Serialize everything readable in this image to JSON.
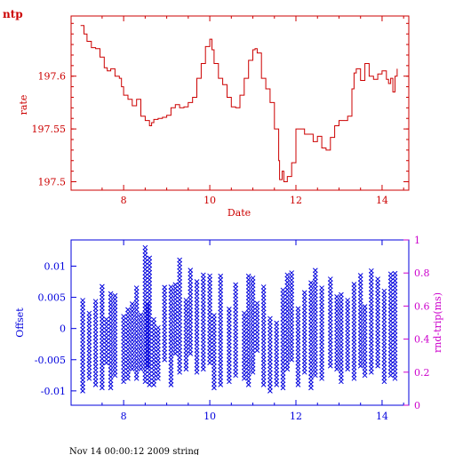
{
  "header": {
    "title": "ntp"
  },
  "footer": {
    "timestamp": "Nov 14 00:00:12 2009 string"
  },
  "colors": {
    "rate": "#cc0000",
    "offset": "#0000dd",
    "rtt": "#cc00cc"
  },
  "chart_data": [
    {
      "type": "line",
      "xlabel": "Date",
      "ylabel": "rate",
      "xlim": [
        6.78,
        14.62
      ],
      "ylim": [
        197.492,
        197.657
      ],
      "x_ticks": [
        8,
        10,
        12,
        14
      ],
      "y_ticks": [
        197.5,
        197.55,
        197.6
      ],
      "y_tick_labels": [
        "197.5",
        "197.55",
        "197.6"
      ],
      "grid": false,
      "series": [
        {
          "x": [
            7.0,
            7.08,
            7.15,
            7.25,
            7.35,
            7.45,
            7.55,
            7.62,
            7.7,
            7.8,
            7.9,
            7.95,
            8.0,
            8.1,
            8.2,
            8.3,
            8.4,
            8.5,
            8.6,
            8.65,
            8.7,
            8.8,
            8.9,
            9.0,
            9.1,
            9.2,
            9.3,
            9.4,
            9.5,
            9.6,
            9.7,
            9.8,
            9.9,
            10.0,
            10.05,
            10.1,
            10.2,
            10.3,
            10.4,
            10.5,
            10.6,
            10.7,
            10.8,
            10.9,
            11.0,
            11.05,
            11.1,
            11.2,
            11.3,
            11.4,
            11.5,
            11.6,
            11.62,
            11.68,
            11.72,
            11.8,
            11.9,
            12.0,
            12.1,
            12.2,
            12.3,
            12.4,
            12.5,
            12.6,
            12.7,
            12.8,
            12.9,
            13.0,
            13.1,
            13.2,
            13.3,
            13.35,
            13.4,
            13.5,
            13.6,
            13.7,
            13.8,
            13.9,
            14.0,
            14.1,
            14.15,
            14.2,
            14.25,
            14.3,
            14.35
          ],
          "y": [
            197.648,
            197.64,
            197.633,
            197.627,
            197.626,
            197.618,
            197.608,
            197.605,
            197.607,
            197.6,
            197.598,
            197.59,
            197.582,
            197.578,
            197.572,
            197.578,
            197.562,
            197.558,
            197.553,
            197.556,
            197.559,
            197.56,
            197.561,
            197.563,
            197.57,
            197.573,
            197.57,
            197.571,
            197.575,
            197.58,
            197.598,
            197.612,
            197.628,
            197.635,
            197.625,
            197.612,
            197.598,
            197.592,
            197.58,
            197.571,
            197.57,
            197.582,
            197.598,
            197.615,
            197.625,
            197.626,
            197.622,
            197.598,
            197.588,
            197.575,
            197.55,
            197.52,
            197.502,
            197.51,
            197.5,
            197.505,
            197.518,
            197.55,
            197.55,
            197.545,
            197.545,
            197.538,
            197.543,
            197.532,
            197.53,
            197.542,
            197.553,
            197.558,
            197.558,
            197.562,
            197.588,
            197.603,
            197.607,
            197.596,
            197.612,
            197.6,
            197.597,
            197.602,
            197.605,
            197.597,
            197.593,
            197.598,
            197.585,
            197.6,
            197.607
          ]
        }
      ]
    },
    {
      "type": "scatter",
      "xlabel": "",
      "ylabel": "Offset",
      "y2label": "rnd-trip(ms)",
      "xlim": [
        6.78,
        14.62
      ],
      "ylim": [
        -0.0123,
        0.0142
      ],
      "y2lim": [
        0,
        1
      ],
      "x_ticks": [
        8,
        10,
        12,
        14
      ],
      "y_ticks": [
        -0.01,
        -0.005,
        0,
        0.005,
        0.01
      ],
      "y_tick_labels": [
        "-0.01",
        "-0.005",
        "0",
        "0.005",
        "0.01"
      ],
      "y2_ticks": [
        0,
        0.2,
        0.4,
        0.6,
        0.8,
        1
      ],
      "y2_tick_labels": [
        "0",
        "0.2",
        "0.4",
        "0.6",
        "0.8",
        "1"
      ],
      "marker": "x",
      "grid": false,
      "series": [
        {
          "x": [
            7.05,
            7.2,
            7.35,
            7.5,
            7.6,
            7.7,
            7.8,
            8.0,
            8.1,
            8.2,
            8.3,
            8.4,
            8.5,
            8.55,
            8.6,
            8.7,
            8.8,
            8.95,
            9.1,
            9.2,
            9.3,
            9.45,
            9.55,
            9.7,
            9.85,
            10.0,
            10.1,
            10.25,
            10.45,
            10.6,
            10.8,
            10.9,
            11.0,
            11.1,
            11.25,
            11.4,
            11.55,
            11.7,
            11.8,
            11.9,
            12.05,
            12.2,
            12.35,
            12.45,
            12.6,
            12.8,
            12.95,
            13.05,
            13.2,
            13.35,
            13.5,
            13.6,
            13.75,
            13.9,
            14.05,
            14.2,
            14.3
          ],
          "high": [
            0.005,
            0.0025,
            0.0045,
            0.007,
            0.002,
            0.006,
            0.0055,
            0.002,
            0.0035,
            0.0045,
            0.0065,
            0.0025,
            0.013,
            0.004,
            0.0115,
            0.0015,
            0.0005,
            0.007,
            0.007,
            0.0075,
            0.0115,
            0.005,
            0.0095,
            0.0075,
            0.009,
            0.0085,
            0.0025,
            0.0085,
            0.0035,
            0.007,
            0.0025,
            0.0085,
            0.0085,
            0.0045,
            0.007,
            0.002,
            0.001,
            0.0065,
            0.009,
            0.009,
            0.0035,
            0.006,
            0.0075,
            0.0095,
            0.007,
            0.008,
            0.0055,
            0.0055,
            0.005,
            0.0075,
            0.0085,
            0.004,
            0.0095,
            0.008,
            0.006,
            0.009,
            0.009
          ],
          "low": [
            -0.01,
            -0.008,
            -0.009,
            -0.0095,
            -0.0055,
            -0.0095,
            -0.0075,
            -0.0085,
            -0.008,
            -0.0065,
            -0.008,
            -0.0065,
            -0.0085,
            -0.006,
            -0.009,
            -0.009,
            -0.008,
            -0.005,
            -0.009,
            -0.004,
            -0.007,
            -0.0065,
            -0.004,
            -0.007,
            -0.0065,
            -0.0055,
            -0.0095,
            -0.009,
            -0.0085,
            -0.0075,
            -0.008,
            -0.009,
            -0.007,
            -0.0035,
            -0.009,
            -0.01,
            -0.009,
            -0.0095,
            -0.0065,
            -0.005,
            -0.009,
            -0.007,
            -0.0095,
            -0.0075,
            -0.008,
            -0.006,
            -0.0065,
            -0.0085,
            -0.0065,
            -0.008,
            -0.006,
            -0.0075,
            -0.007,
            -0.006,
            -0.0085,
            -0.0075,
            -0.008
          ]
        }
      ]
    }
  ]
}
